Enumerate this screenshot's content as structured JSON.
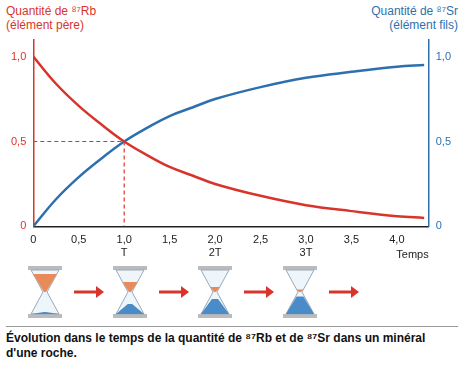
{
  "chart_data": {
    "type": "line",
    "ylabel": [
      "Quantité de ⁸⁷Rb",
      "(élément père)"
    ],
    "y2label": [
      "Quantité de ⁸⁷Sr",
      "(élément fils)"
    ],
    "xlabel": "Temps",
    "caption": "Évolution dans le temps de la quantité de ⁸⁷Rb et de ⁸⁷Sr dans un minéral d'une roche.",
    "x": [
      0,
      0.25,
      0.5,
      0.75,
      1.0,
      1.25,
      1.5,
      1.75,
      2.0,
      2.5,
      3.0,
      3.5,
      4.0,
      4.3
    ],
    "series": [
      {
        "name": "⁸⁷Rb",
        "color": "#d9342b",
        "axis": "y",
        "values": [
          1.0,
          0.84,
          0.71,
          0.6,
          0.5,
          0.42,
          0.35,
          0.3,
          0.25,
          0.18,
          0.125,
          0.09,
          0.06,
          0.05
        ]
      },
      {
        "name": "⁸⁷Sr",
        "color": "#2e6fae",
        "axis": "y2",
        "values": [
          0,
          0.16,
          0.29,
          0.4,
          0.5,
          0.58,
          0.65,
          0.7,
          0.75,
          0.82,
          0.875,
          0.91,
          0.94,
          0.95
        ]
      }
    ],
    "xlim": [
      0,
      4.35
    ],
    "xticks": [
      0,
      {
        "value": 0.5,
        "label": "0,5"
      },
      {
        "value": 1.0,
        "label": "1,0"
      },
      {
        "value": 1.5,
        "label": "1,5"
      },
      {
        "value": 2.0,
        "label": "2,0"
      },
      {
        "value": 2.5,
        "label": "2,5"
      },
      {
        "value": 3.0,
        "label": "3,0"
      },
      {
        "value": 3.5,
        "label": "3,5"
      },
      {
        "value": 4.0,
        "label": "4,0"
      }
    ],
    "ylim": [
      0,
      1.1
    ],
    "yticks": [
      0,
      {
        "value": 0.5,
        "label": "0,5"
      },
      {
        "value": 1.0,
        "label": "1,0"
      }
    ],
    "y2lim": [
      0,
      1.1
    ],
    "y2ticks": [
      0,
      {
        "value": 0.5,
        "label": "0,5"
      },
      {
        "value": 1.0,
        "label": "1,0"
      }
    ],
    "annotations": [
      {
        "x": 1.0,
        "text": "T"
      },
      {
        "x": 2.0,
        "text": "2T"
      },
      {
        "x": 3.0,
        "text": "3T"
      }
    ],
    "guide_point": {
      "x": 1.0,
      "y": 0.5,
      "color": "#d9342b",
      "line_style": "dashed"
    },
    "grid": false
  }
}
